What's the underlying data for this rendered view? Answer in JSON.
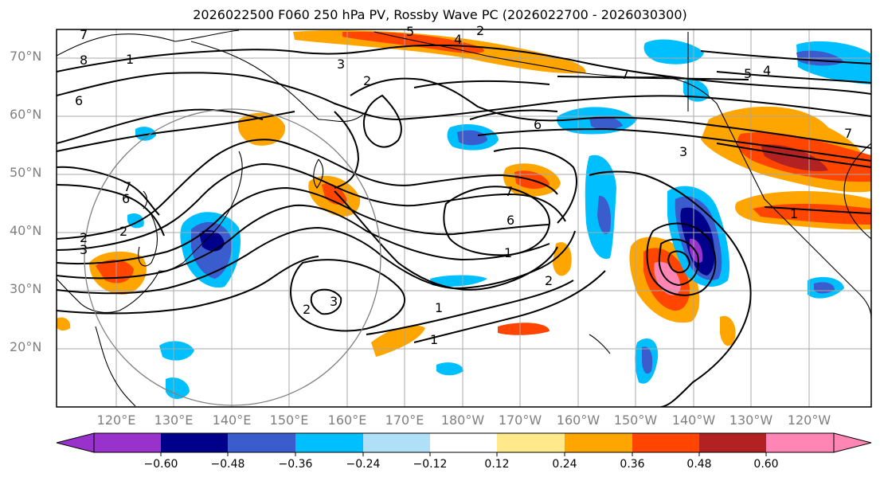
{
  "title": "2026022500 F060 250 hPa PV, Rossby Wave PC (2026022700 - 2026030300)",
  "map": {
    "lat_labels": [
      "70°N",
      "60°N",
      "50°N",
      "40°N",
      "30°N",
      "20°N"
    ],
    "lon_labels": [
      "120°E",
      "130°E",
      "140°E",
      "150°E",
      "160°E",
      "170°E",
      "180°W",
      "170°W",
      "160°W",
      "150°W",
      "140°W",
      "130°W",
      "120°W"
    ],
    "contour_labels": [
      "7",
      "8",
      "1",
      "6",
      "3",
      "2",
      "5",
      "4",
      "7",
      "7",
      "6",
      "3",
      "5",
      "4",
      "2",
      "7",
      "6",
      "2",
      "1",
      "1",
      "2",
      "3",
      "2",
      "1",
      "2",
      "3",
      "7",
      "6",
      "1"
    ]
  },
  "colorbar": {
    "ticks": [
      "−0.60",
      "−0.48",
      "−0.36",
      "−0.24",
      "−0.12",
      "0.12",
      "0.24",
      "0.36",
      "0.48",
      "0.60"
    ],
    "colors": [
      "#9932cc",
      "#00008b",
      "#3a5ccd",
      "#00bfff",
      "#afe0f7",
      "#ffffff",
      "#ffe98a",
      "#ffa500",
      "#ff4500",
      "#b22222",
      "#ff85b4"
    ]
  }
}
